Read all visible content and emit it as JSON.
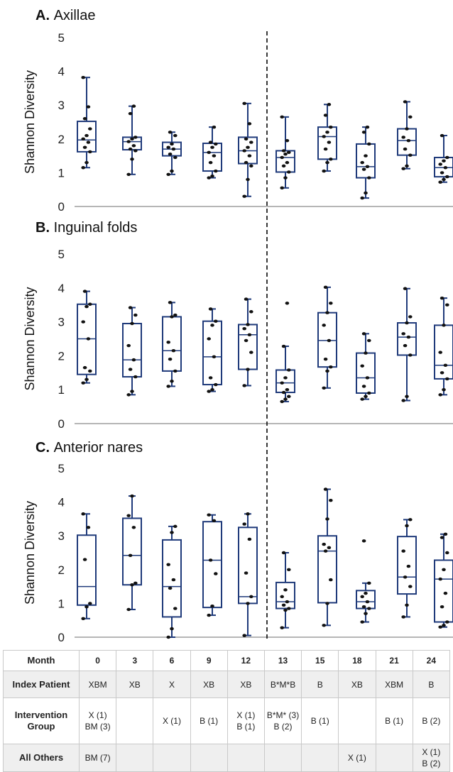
{
  "chart_data": [
    {
      "type": "box",
      "title": "A. Axillae",
      "title_prefix": "A.",
      "title_text": "Axillae",
      "ylabel": "Shannon Diversity",
      "ylim": [
        0,
        5
      ],
      "yticks": [
        "0",
        "1",
        "2",
        "3",
        "4",
        "5"
      ],
      "categories": [
        "0",
        "3",
        "6",
        "9",
        "12",
        "13",
        "15",
        "18",
        "21",
        "24"
      ],
      "divider_after_category": "12",
      "boxes": [
        {
          "min": 1.15,
          "q1": 1.62,
          "median": 1.97,
          "q3": 2.52,
          "max": 3.82,
          "points": [
            1.15,
            1.3,
            1.62,
            1.75,
            1.9,
            2.0,
            2.1,
            2.3,
            2.6,
            2.95,
            3.82
          ]
        },
        {
          "min": 0.95,
          "q1": 1.68,
          "median": 1.92,
          "q3": 2.05,
          "max": 2.97,
          "points": [
            0.95,
            1.4,
            1.65,
            1.7,
            1.8,
            1.92,
            2.0,
            2.05,
            2.75,
            2.97
          ]
        },
        {
          "min": 0.95,
          "q1": 1.5,
          "median": 1.7,
          "q3": 1.9,
          "max": 2.2,
          "points": [
            0.95,
            1.05,
            1.45,
            1.55,
            1.7,
            1.75,
            1.85,
            2.1,
            2.2
          ]
        },
        {
          "min": 0.85,
          "q1": 1.05,
          "median": 1.6,
          "q3": 1.87,
          "max": 2.35,
          "points": [
            0.85,
            0.9,
            1.05,
            1.3,
            1.5,
            1.6,
            1.75,
            1.85,
            1.9,
            2.35
          ]
        },
        {
          "min": 0.3,
          "q1": 1.27,
          "median": 1.65,
          "q3": 2.05,
          "max": 3.05,
          "points": [
            0.3,
            0.8,
            1.2,
            1.3,
            1.5,
            1.65,
            1.75,
            1.9,
            2.0,
            2.45,
            3.05
          ]
        },
        {
          "min": 0.55,
          "q1": 1.02,
          "median": 1.45,
          "q3": 1.65,
          "max": 2.65,
          "points": [
            0.55,
            0.85,
            1.02,
            1.2,
            1.3,
            1.45,
            1.55,
            1.6,
            1.65,
            1.95,
            2.65
          ]
        },
        {
          "min": 1.05,
          "q1": 1.4,
          "median": 2.07,
          "q3": 2.35,
          "max": 3.02,
          "points": [
            1.05,
            1.3,
            1.4,
            1.7,
            1.9,
            2.07,
            2.2,
            2.35,
            2.7,
            3.02
          ]
        },
        {
          "min": 0.25,
          "q1": 0.85,
          "median": 1.18,
          "q3": 1.85,
          "max": 2.35,
          "points": [
            0.25,
            0.4,
            0.85,
            1.1,
            1.18,
            1.3,
            1.5,
            1.85,
            2.2,
            2.35
          ]
        },
        {
          "min": 1.12,
          "q1": 1.52,
          "median": 1.95,
          "q3": 2.3,
          "max": 3.1,
          "points": [
            1.12,
            1.2,
            1.52,
            1.7,
            1.95,
            2.05,
            2.3,
            2.65,
            3.1
          ]
        },
        {
          "min": 0.72,
          "q1": 0.88,
          "median": 1.15,
          "q3": 1.45,
          "max": 2.1,
          "points": [
            0.72,
            0.8,
            0.88,
            1.0,
            1.15,
            1.25,
            1.35,
            1.45,
            2.1
          ]
        }
      ]
    },
    {
      "type": "box",
      "title": "B. Inguinal folds",
      "title_prefix": "B.",
      "title_text": "Inguinal folds",
      "ylabel": "Shannon Diversity",
      "ylim": [
        0,
        5
      ],
      "yticks": [
        "0",
        "1",
        "2",
        "3",
        "4",
        "5"
      ],
      "categories": [
        "0",
        "3",
        "6",
        "9",
        "12",
        "13",
        "15",
        "18",
        "21",
        "24"
      ],
      "divider_after_category": "12",
      "boxes": [
        {
          "min": 1.2,
          "q1": 1.45,
          "median": 2.5,
          "q3": 3.52,
          "max": 3.9,
          "points": [
            1.2,
            1.3,
            1.55,
            1.65,
            2.5,
            3.0,
            3.45,
            3.52,
            3.9
          ]
        },
        {
          "min": 0.85,
          "q1": 1.38,
          "median": 1.88,
          "q3": 2.95,
          "max": 3.42,
          "points": [
            0.85,
            0.95,
            1.38,
            1.6,
            1.88,
            2.3,
            2.95,
            3.2,
            3.42
          ]
        },
        {
          "min": 1.1,
          "q1": 1.55,
          "median": 2.15,
          "q3": 3.15,
          "max": 3.57,
          "points": [
            1.1,
            1.25,
            1.55,
            1.9,
            2.15,
            2.4,
            3.15,
            3.2,
            3.57
          ]
        },
        {
          "min": 0.95,
          "q1": 1.15,
          "median": 1.97,
          "q3": 3.02,
          "max": 3.38,
          "points": [
            0.95,
            1.0,
            1.15,
            1.35,
            1.97,
            2.5,
            2.9,
            3.02,
            3.38
          ]
        },
        {
          "min": 1.12,
          "q1": 1.6,
          "median": 2.62,
          "q3": 2.92,
          "max": 3.67,
          "points": [
            1.12,
            1.6,
            2.1,
            2.45,
            2.62,
            2.8,
            2.92,
            3.3,
            3.67
          ]
        },
        {
          "min": 0.65,
          "q1": 0.92,
          "median": 1.2,
          "q3": 1.58,
          "max": 2.28,
          "points": [
            0.65,
            0.72,
            0.8,
            0.92,
            1.0,
            1.2,
            1.35,
            1.58,
            2.28,
            3.55
          ]
        },
        {
          "min": 1.05,
          "q1": 1.67,
          "median": 2.45,
          "q3": 3.27,
          "max": 4.02,
          "points": [
            1.05,
            1.55,
            1.67,
            1.9,
            2.45,
            2.9,
            3.27,
            3.55,
            4.02
          ]
        },
        {
          "min": 0.72,
          "q1": 0.9,
          "median": 1.35,
          "q3": 2.08,
          "max": 2.65,
          "points": [
            0.72,
            0.8,
            0.9,
            1.1,
            1.35,
            1.7,
            2.08,
            2.45,
            2.65
          ]
        },
        {
          "min": 0.68,
          "q1": 2.02,
          "median": 2.55,
          "q3": 2.97,
          "max": 3.98,
          "points": [
            0.68,
            0.8,
            2.02,
            2.3,
            2.55,
            2.65,
            2.97,
            3.15,
            3.98
          ]
        },
        {
          "min": 0.85,
          "q1": 1.32,
          "median": 1.72,
          "q3": 2.9,
          "max": 3.7,
          "points": [
            0.85,
            1.0,
            1.32,
            1.5,
            1.72,
            2.1,
            2.9,
            3.5,
            3.7
          ]
        }
      ]
    },
    {
      "type": "box",
      "title": "C. Anterior nares",
      "title_prefix": "C.",
      "title_text": "Anterior nares",
      "ylabel": "Shannon Diversity",
      "ylim": [
        0,
        5
      ],
      "yticks": [
        "0",
        "1",
        "2",
        "3",
        "4",
        "5"
      ],
      "categories": [
        "0",
        "3",
        "6",
        "9",
        "12",
        "13",
        "15",
        "18",
        "21",
        "24"
      ],
      "divider_after_category": "12",
      "boxes": [
        {
          "min": 0.55,
          "q1": 0.95,
          "median": 1.5,
          "q3": 3.02,
          "max": 3.65,
          "points": [
            0.55,
            0.9,
            1.0,
            2.3,
            3.25,
            3.65
          ]
        },
        {
          "min": 0.82,
          "q1": 1.55,
          "median": 2.42,
          "q3": 3.52,
          "max": 4.18,
          "points": [
            0.82,
            1.55,
            1.6,
            2.42,
            3.25,
            3.6,
            4.18
          ]
        },
        {
          "min": 0.0,
          "q1": 0.6,
          "median": 1.5,
          "q3": 2.88,
          "max": 3.28,
          "points": [
            0.0,
            0.25,
            0.85,
            1.45,
            1.7,
            2.15,
            3.1,
            3.28
          ]
        },
        {
          "min": 0.65,
          "q1": 0.88,
          "median": 2.28,
          "q3": 3.42,
          "max": 3.62,
          "points": [
            0.65,
            0.92,
            1.88,
            2.28,
            3.45,
            3.62
          ]
        },
        {
          "min": 0.05,
          "q1": 1.0,
          "median": 1.2,
          "q3": 3.25,
          "max": 3.65,
          "points": [
            0.05,
            1.0,
            1.2,
            1.9,
            2.9,
            3.35,
            3.65
          ]
        },
        {
          "min": 0.28,
          "q1": 0.85,
          "median": 1.05,
          "q3": 1.62,
          "max": 2.5,
          "points": [
            0.28,
            0.8,
            0.85,
            0.95,
            1.05,
            1.2,
            1.4,
            2.0,
            2.5
          ]
        },
        {
          "min": 0.35,
          "q1": 1.02,
          "median": 2.55,
          "q3": 3.0,
          "max": 4.38,
          "points": [
            0.35,
            1.0,
            1.7,
            2.55,
            2.65,
            2.75,
            3.5,
            4.05,
            4.38
          ]
        },
        {
          "min": 0.45,
          "q1": 0.85,
          "median": 1.05,
          "q3": 1.38,
          "max": 1.6,
          "points": [
            0.45,
            0.7,
            0.85,
            0.9,
            1.05,
            1.2,
            1.3,
            1.6,
            2.85
          ]
        },
        {
          "min": 0.6,
          "q1": 1.28,
          "median": 1.78,
          "q3": 2.98,
          "max": 3.48,
          "points": [
            0.6,
            0.95,
            1.5,
            1.78,
            2.1,
            2.55,
            3.3,
            3.48
          ]
        },
        {
          "min": 0.3,
          "q1": 0.45,
          "median": 1.72,
          "q3": 2.28,
          "max": 3.05,
          "points": [
            0.3,
            0.35,
            0.45,
            0.9,
            1.3,
            1.72,
            2.0,
            2.5,
            2.95,
            3.05
          ]
        }
      ]
    }
  ],
  "table": {
    "header_label": "Month",
    "months": [
      "0",
      "3",
      "6",
      "9",
      "12",
      "13",
      "15",
      "18",
      "21",
      "24"
    ],
    "rows": [
      {
        "label": "Index Patient",
        "cells": [
          [
            "XBM"
          ],
          [
            "XB"
          ],
          [
            "X"
          ],
          [
            "XB"
          ],
          [
            "XB"
          ],
          [
            "B*M*B"
          ],
          [
            "B"
          ],
          [
            "XB"
          ],
          [
            "XBM"
          ],
          [
            "B"
          ]
        ]
      },
      {
        "label_lines": [
          "Intervention",
          "Group"
        ],
        "cells": [
          [
            "X (1)",
            "BM (3)"
          ],
          [],
          [
            "X (1)"
          ],
          [
            "B (1)"
          ],
          [
            "X (1)",
            "B (1)"
          ],
          [
            "B*M* (3)",
            "B (2)"
          ],
          [
            "B (1)"
          ],
          [],
          [
            "B (1)"
          ],
          [
            "B (2)"
          ]
        ]
      },
      {
        "label": "All Others",
        "cells": [
          [
            "BM (7)"
          ],
          [],
          [],
          [],
          [],
          [],
          [],
          [
            "X (1)"
          ],
          [],
          [
            "X (1)",
            "B (2)"
          ]
        ]
      }
    ]
  },
  "colors": {
    "box_stroke": "#1f3a7a",
    "point": "#111111",
    "axis": "#6e6e6e",
    "divider": "#222222",
    "row_shade": "#efefef"
  }
}
